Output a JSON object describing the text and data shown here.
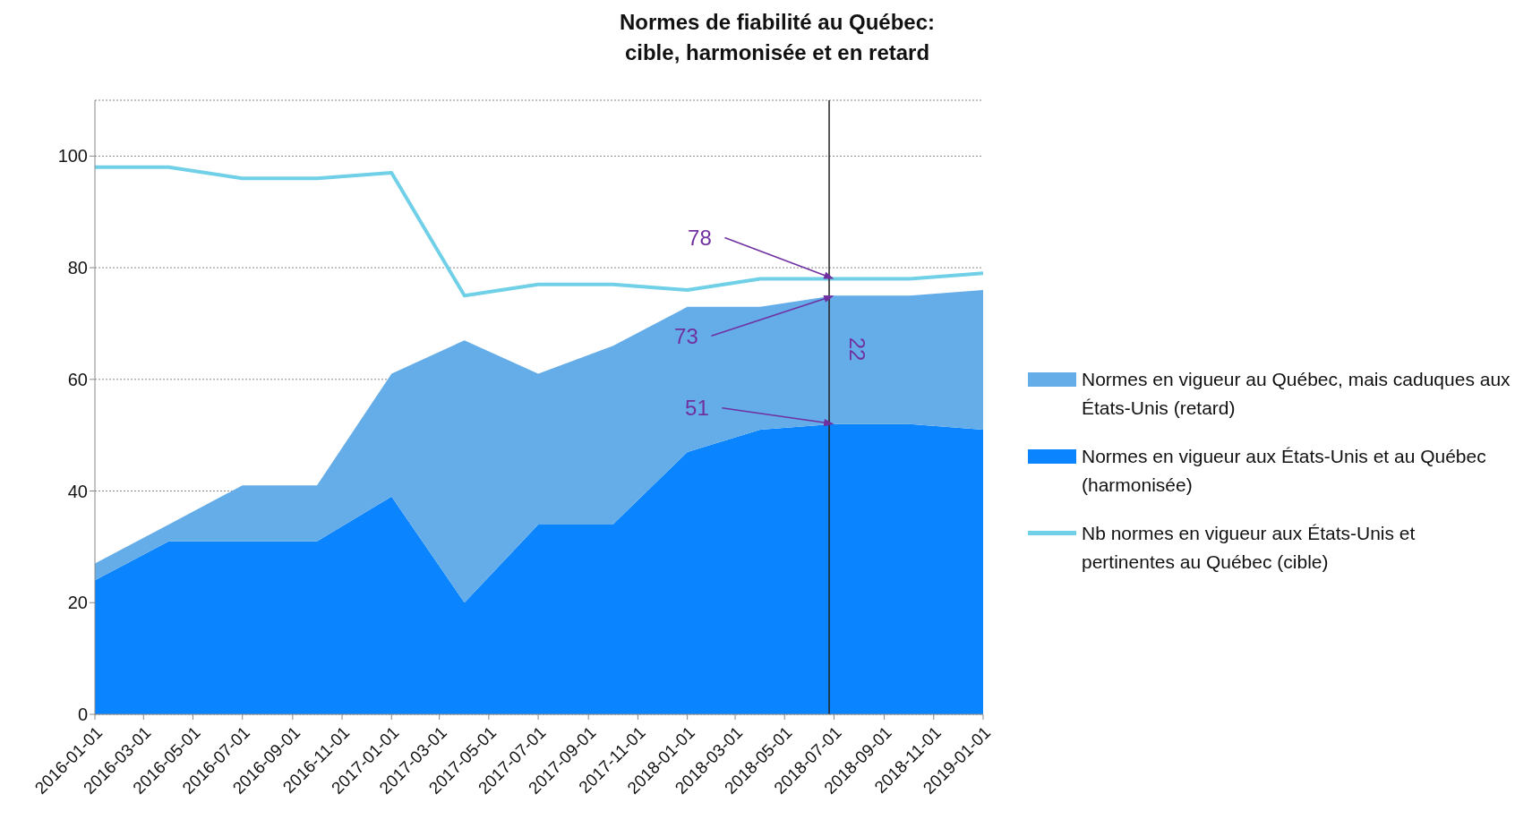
{
  "chart_data": {
    "type": "area",
    "title": "Normes de fiabilité au Québec:\ncible, harmonisée et en retard",
    "x": [
      "2016-01-01",
      "2016-04-01",
      "2016-07-01",
      "2016-10-01",
      "2017-01-01",
      "2017-04-01",
      "2017-07-01",
      "2017-10-01",
      "2018-01-01",
      "2018-04-01",
      "2018-07-01",
      "2018-10-01",
      "2019-01-01"
    ],
    "stacked": true,
    "series": [
      {
        "name": "Normes en vigueur aux États-Unis et au Québec (harmonisée)",
        "color": "#0a84ff",
        "values": [
          24,
          31,
          31,
          31,
          39,
          20,
          34,
          34,
          47,
          51,
          52,
          52,
          51
        ]
      },
      {
        "name": "Normes en vigueur au Québec, mais caduques aux États-Unis (retard)",
        "color": "#64ade8",
        "values": [
          3,
          3,
          10,
          10,
          22,
          47,
          27,
          32,
          26,
          22,
          23,
          23,
          25
        ]
      },
      {
        "name": "Nb normes en vigueur aux États-Unis et pertinentes au Québec (cible)",
        "type": "line",
        "color": "#70d0e8",
        "values": [
          98,
          98,
          96,
          96,
          97,
          75,
          77,
          77,
          76,
          78,
          78,
          78,
          79
        ]
      }
    ],
    "xlim": [
      "2016-01-01",
      "2019-01-01"
    ],
    "xticks": [
      "2016-01-01",
      "2016-03-01",
      "2016-05-01",
      "2016-07-01",
      "2016-09-01",
      "2016-11-01",
      "2017-01-01",
      "2017-03-01",
      "2017-05-01",
      "2017-07-01",
      "2017-09-01",
      "2017-11-01",
      "2018-01-01",
      "2018-03-01",
      "2018-05-01",
      "2018-07-01",
      "2018-09-01",
      "2018-11-01",
      "2019-01-01"
    ],
    "ylim": [
      0,
      110
    ],
    "yticks": [
      0,
      20,
      40,
      60,
      80,
      100
    ],
    "grid": "y",
    "legend": "right",
    "marker": "none",
    "ref_lines": [
      {
        "axis": "x",
        "value": "2018-06-25",
        "color": "#222222"
      }
    ],
    "annotations": [
      {
        "text": "78",
        "x": "2018-07-01",
        "y": 78
      },
      {
        "text": "73",
        "x": "2018-07-01",
        "y": 75
      },
      {
        "text": "51",
        "x": "2018-07-01",
        "y": 52
      },
      "22"
    ]
  }
}
